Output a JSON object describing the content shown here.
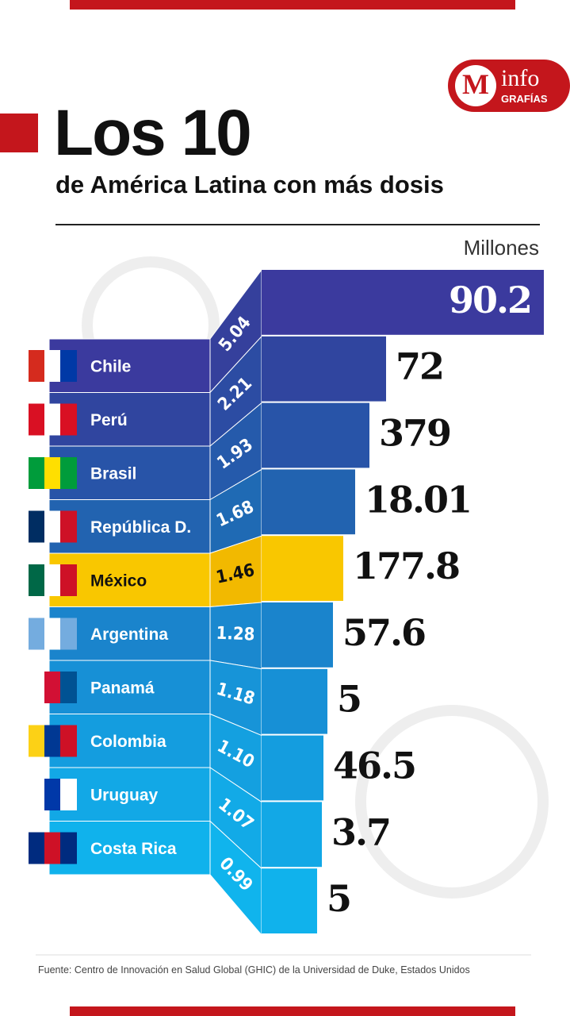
{
  "header": {
    "title": "Los 10",
    "subtitle": "de América Latina con más dosis",
    "unit": "Millones",
    "logo": {
      "letter": "M",
      "word": "info",
      "sub": "GRAFÍAS"
    }
  },
  "rows": [
    {
      "country": "Chile",
      "per_capita": "5.04",
      "doses": "90.2"
    },
    {
      "country": "Perú",
      "per_capita": "2.21",
      "doses": "72"
    },
    {
      "country": "Brasil",
      "per_capita": "1.93",
      "doses": "379"
    },
    {
      "country": "República D.",
      "per_capita": "1.68",
      "doses": "18.01"
    },
    {
      "country": "México",
      "per_capita": "1.46",
      "doses": "177.8"
    },
    {
      "country": "Argentina",
      "per_capita": "1.28",
      "doses": "57.6"
    },
    {
      "country": "Panamá",
      "per_capita": "1.18",
      "doses": "5"
    },
    {
      "country": "Colombia",
      "per_capita": "1.10",
      "doses": "46.5"
    },
    {
      "country": "Uruguay",
      "per_capita": "1.07",
      "doses": "3.7"
    },
    {
      "country": "Costa Rica",
      "per_capita": "0.99",
      "doses": "5"
    }
  ],
  "source": "Fuente: Centro de Innovación en Salud Global (GHIC) de la Universidad de Duke, Estados Unidos"
}
